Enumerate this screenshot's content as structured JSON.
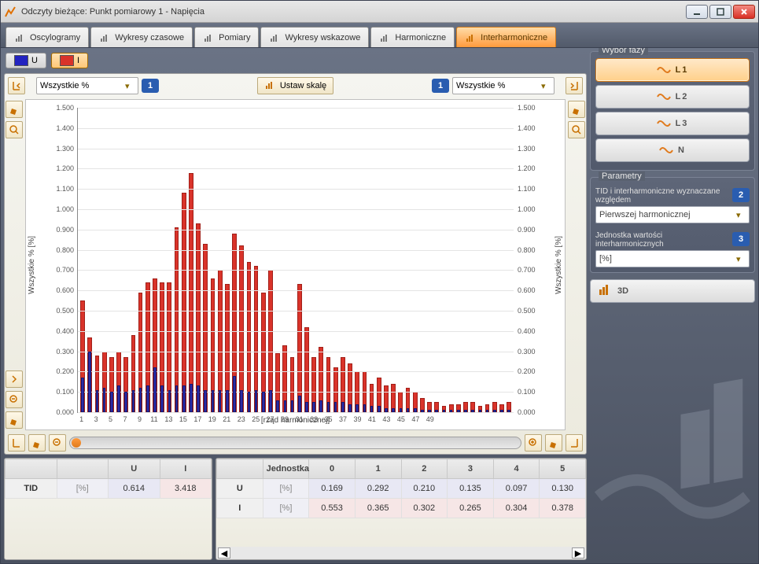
{
  "window": {
    "title": "Odczyty bieżące: Punkt pomiarowy 1 - Napięcia"
  },
  "tabs": [
    {
      "label": "Oscylogramy"
    },
    {
      "label": "Wykresy czasowe"
    },
    {
      "label": "Pomiary"
    },
    {
      "label": "Wykresy wskazowe"
    },
    {
      "label": "Harmoniczne"
    },
    {
      "label": "Interharmoniczne"
    }
  ],
  "active_tab": 5,
  "series_buttons": {
    "u_label": "U",
    "i_label": "I",
    "u_color": "#2323c0",
    "i_color": "#d9332a"
  },
  "axis_combo_left": "Wszystkie %",
  "axis_combo_right": "Wszystkie %",
  "scale_btn_label": "Ustaw skalę",
  "balloon_1": "1",
  "phase_group_title": "Wybór fazy",
  "phases": [
    {
      "label": "L1"
    },
    {
      "label": "L2"
    },
    {
      "label": "L3"
    },
    {
      "label": "N"
    }
  ],
  "active_phase": 0,
  "param_group_title": "Parametry",
  "param1_label": "TID i interharmoniczne wyznaczane względem",
  "param1_balloon": "2",
  "param1_value": "Pierwszej harmonicznej",
  "param2_label": "Jednostka wartości interharmonicznych",
  "param2_balloon": "3",
  "param2_value": "[%]",
  "btn3d_label": "3D",
  "chart": {
    "type": "bar",
    "ylabel_left": "Wszystkie % [%]",
    "ylabel_right": "Wszystkie % [%]",
    "xlabel": "[rząd harmonicznej]",
    "ylim": [
      0,
      1.5
    ],
    "ytick_step": 0.1,
    "xticks": [
      1,
      3,
      5,
      7,
      9,
      11,
      13,
      15,
      17,
      19,
      21,
      23,
      25,
      27,
      29,
      31,
      33,
      35,
      37,
      39,
      41,
      43,
      45,
      47,
      49
    ],
    "i_color": "#d9332a",
    "i_border": "#a11f18",
    "u_color": "#2a2aa8",
    "u_border": "#181870",
    "grid_color": "#e4e4e4",
    "background": "#ffffff",
    "i_values": [
      0.55,
      0.37,
      0.28,
      0.3,
      0.27,
      0.3,
      0.27,
      0.38,
      0.59,
      0.64,
      0.66,
      0.64,
      0.64,
      0.91,
      1.08,
      1.18,
      0.93,
      0.83,
      0.66,
      0.7,
      0.63,
      0.88,
      0.82,
      0.74,
      0.72,
      0.59,
      0.7,
      0.29,
      0.33,
      0.27,
      0.63,
      0.42,
      0.27,
      0.32,
      0.27,
      0.22,
      0.27,
      0.24,
      0.2,
      0.2,
      0.14,
      0.17,
      0.13,
      0.14,
      0.1,
      0.12,
      0.1,
      0.07,
      0.05,
      0.05,
      0.03,
      0.04,
      0.04,
      0.05,
      0.05,
      0.03,
      0.04,
      0.05,
      0.04,
      0.05
    ],
    "u_values": [
      0.17,
      0.3,
      0.11,
      0.12,
      0.1,
      0.13,
      0.1,
      0.11,
      0.12,
      0.13,
      0.22,
      0.13,
      0.11,
      0.13,
      0.13,
      0.14,
      0.13,
      0.11,
      0.11,
      0.11,
      0.11,
      0.18,
      0.11,
      0.1,
      0.11,
      0.1,
      0.11,
      0.06,
      0.06,
      0.06,
      0.08,
      0.05,
      0.05,
      0.06,
      0.05,
      0.05,
      0.05,
      0.04,
      0.04,
      0.04,
      0.03,
      0.03,
      0.02,
      0.02,
      0.02,
      0.02,
      0.02,
      0.01,
      0.01,
      0.01,
      0.01,
      0.01,
      0.01,
      0.01,
      0.01,
      0.01,
      0.01,
      0.01,
      0.01,
      0.01
    ]
  },
  "tid_table": {
    "headers": [
      "",
      "",
      "U",
      "I"
    ],
    "row_label": "TID",
    "unit": "[%]",
    "u": "0.614",
    "i": "3.418"
  },
  "harm_table": {
    "headers": [
      "",
      "Jednostka",
      "0",
      "1",
      "2",
      "3",
      "4",
      "5"
    ],
    "rows": [
      {
        "label": "U",
        "unit": "[%]",
        "vals": [
          "0.169",
          "0.292",
          "0.210",
          "0.135",
          "0.097",
          "0.130"
        ],
        "row_class": "u-row"
      },
      {
        "label": "I",
        "unit": "[%]",
        "vals": [
          "0.553",
          "0.365",
          "0.302",
          "0.265",
          "0.304",
          "0.378"
        ],
        "row_class": "i-row"
      }
    ]
  }
}
